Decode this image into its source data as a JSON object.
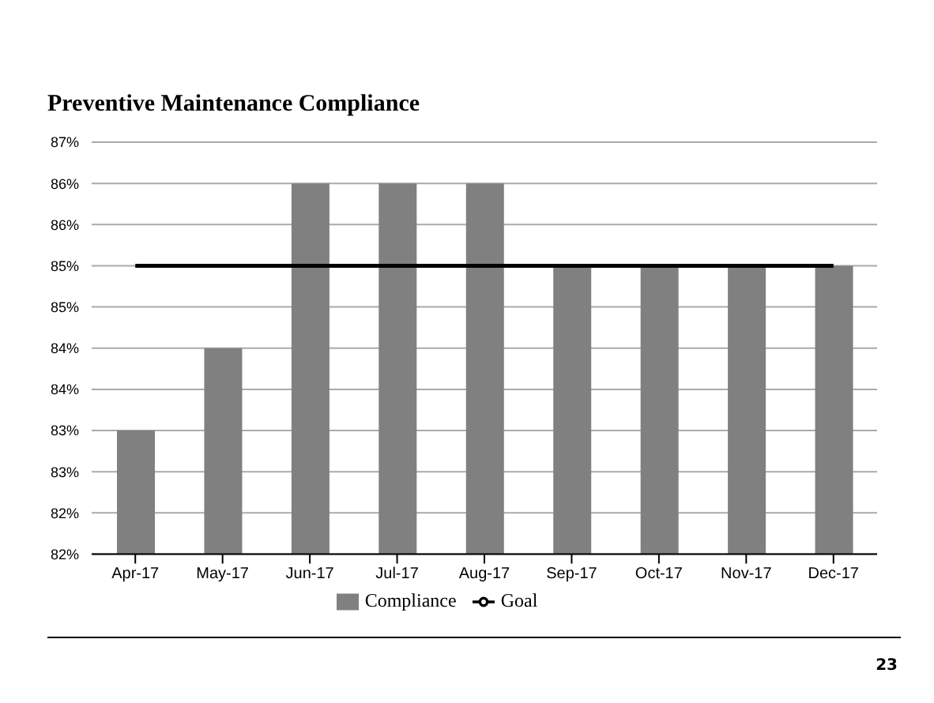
{
  "chart_data": {
    "type": "bar",
    "title": "Preventive Maintenance Compliance",
    "categories": [
      "Apr-17",
      "May-17",
      "Jun-17",
      "Jul-17",
      "Aug-17",
      "Sep-17",
      "Oct-17",
      "Nov-17",
      "Dec-17"
    ],
    "series": [
      {
        "name": "Compliance",
        "color": "#808080",
        "values": [
          83.5,
          84.5,
          86.5,
          86.5,
          86.5,
          85.5,
          85.5,
          85.5,
          85.5
        ]
      },
      {
        "name": "Goal",
        "type": "line",
        "color": "#000000",
        "values": [
          85.5,
          85.5,
          85.5,
          85.5,
          85.5,
          85.5,
          85.5,
          85.5,
          85.5
        ]
      }
    ],
    "ylim": [
      82,
      87
    ],
    "yticks": [
      {
        "value": 82,
        "label": "82%"
      },
      {
        "value": 82.5,
        "label": "82%"
      },
      {
        "value": 83,
        "label": "83%"
      },
      {
        "value": 83.5,
        "label": "83%"
      },
      {
        "value": 84,
        "label": "84%"
      },
      {
        "value": 84.5,
        "label": "84%"
      },
      {
        "value": 85,
        "label": "85%"
      },
      {
        "value": 85.5,
        "label": "85%"
      },
      {
        "value": 86,
        "label": "86%"
      },
      {
        "value": 86.5,
        "label": "86%"
      },
      {
        "value": 87,
        "label": "87%"
      }
    ],
    "grid": "y",
    "legend": "bottom",
    "marker": "none",
    "annotations": [
      "23"
    ]
  }
}
